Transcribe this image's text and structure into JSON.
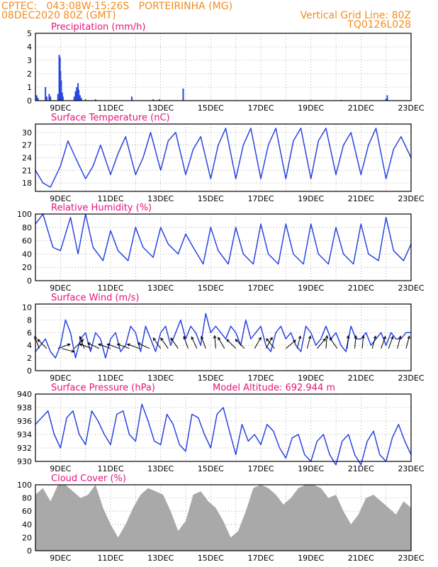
{
  "header": {
    "station_line": "CPTEC:   043:08W-15:26S   PORTEIRINHA (MG)",
    "date_line": "08DEC2020 80Z (GMT)",
    "grid_line": "Vertical Grid Line: 80Z",
    "model_code": "TQ0126L028"
  },
  "colors": {
    "header_text": "#f28c1e",
    "title_text": "#e8127c",
    "series_line": "#2b45e0",
    "cloud_fill": "#a9a9a9",
    "wind_arrow": "#000000"
  },
  "x_ticks": [
    "9DEC",
    "11DEC",
    "13DEC",
    "15DEC",
    "17DEC",
    "19DEC",
    "21DEC",
    "23DEC"
  ],
  "chart_data": [
    {
      "type": "bar",
      "title": "Precipitation (mm/h)",
      "ylim": [
        0,
        5
      ],
      "yticks": [
        "0",
        "1",
        "2",
        "3",
        "4",
        "5"
      ],
      "grid": true,
      "x_unit": "days since 8DEC 00Z",
      "bars": [
        [
          0.05,
          0.4
        ],
        [
          0.1,
          0.2
        ],
        [
          0.4,
          1.0
        ],
        [
          0.45,
          0.3
        ],
        [
          0.55,
          0.5
        ],
        [
          0.6,
          0.3
        ],
        [
          0.9,
          0.5
        ],
        [
          0.95,
          3.4
        ],
        [
          0.98,
          3.2
        ],
        [
          1.0,
          2.2
        ],
        [
          1.03,
          1.5
        ],
        [
          1.07,
          0.6
        ],
        [
          1.1,
          0.3
        ],
        [
          1.55,
          0.3
        ],
        [
          1.6,
          0.7
        ],
        [
          1.65,
          1.0
        ],
        [
          1.7,
          1.3
        ],
        [
          1.73,
          0.8
        ],
        [
          1.78,
          0.4
        ],
        [
          1.83,
          0.2
        ],
        [
          2.0,
          0.1
        ],
        [
          2.4,
          0.1
        ],
        [
          3.85,
          0.3
        ],
        [
          4.7,
          0.1
        ],
        [
          4.95,
          0.1
        ],
        [
          5.9,
          0.9
        ],
        [
          11.0,
          0.05
        ],
        [
          12.2,
          0.05
        ],
        [
          14.0,
          0.15
        ],
        [
          14.05,
          0.4
        ]
      ]
    },
    {
      "type": "line",
      "title": "Surface Temperature (nC)",
      "ylim": [
        16,
        32
      ],
      "yticks": [
        "18",
        "21",
        "24",
        "27",
        "30"
      ],
      "grid": true,
      "x_unit": "days since 8DEC 00Z",
      "series": [
        {
          "x": [
            0,
            0.3,
            0.6,
            1.0,
            1.3,
            1.6,
            2.0,
            2.3,
            2.6,
            3.0,
            3.3,
            3.6,
            4.0,
            4.3,
            4.6,
            5.0,
            5.3,
            5.6,
            6.0,
            6.3,
            6.6,
            7.0,
            7.3,
            7.6,
            8.0,
            8.3,
            8.6,
            9.0,
            9.3,
            9.6,
            10.0,
            10.3,
            10.6,
            11.0,
            11.3,
            11.6,
            12.0,
            12.3,
            12.6,
            13.0,
            13.3,
            13.6,
            14.0,
            14.3,
            14.6,
            15.0
          ],
          "y": [
            21,
            18,
            17,
            22,
            28,
            24,
            19,
            22,
            27,
            20,
            25,
            29,
            20,
            24,
            30,
            21,
            28,
            30,
            20,
            26,
            29,
            19,
            27,
            31,
            19,
            27,
            31,
            19,
            27,
            31,
            19,
            28,
            31,
            19,
            28,
            31,
            20,
            27,
            30,
            20,
            27,
            31,
            19,
            26,
            29,
            24
          ]
        }
      ]
    },
    {
      "type": "line",
      "title": "Relative Humidity (%)",
      "ylim": [
        0,
        100
      ],
      "yticks": [
        "0",
        "20",
        "40",
        "60",
        "80",
        "100"
      ],
      "grid": true,
      "x_unit": "days since 8DEC 00Z",
      "series": [
        {
          "x": [
            0,
            0.3,
            0.7,
            1.0,
            1.4,
            1.7,
            2.0,
            2.3,
            2.7,
            3.0,
            3.3,
            3.7,
            4.0,
            4.3,
            4.7,
            5.0,
            5.3,
            5.7,
            6.0,
            6.3,
            6.7,
            7.0,
            7.3,
            7.7,
            8.0,
            8.3,
            8.7,
            9.0,
            9.3,
            9.7,
            10.0,
            10.3,
            10.7,
            11.0,
            11.3,
            11.7,
            12.0,
            12.3,
            12.7,
            13.0,
            13.3,
            13.7,
            14.0,
            14.3,
            14.7,
            15.0
          ],
          "y": [
            85,
            100,
            50,
            45,
            95,
            40,
            100,
            50,
            30,
            75,
            45,
            30,
            80,
            50,
            35,
            80,
            55,
            40,
            70,
            50,
            25,
            80,
            45,
            25,
            80,
            40,
            25,
            85,
            40,
            25,
            85,
            40,
            25,
            85,
            40,
            25,
            80,
            40,
            25,
            85,
            40,
            30,
            95,
            45,
            30,
            55
          ]
        }
      ]
    },
    {
      "type": "line",
      "title": "Surface Wind (m/s)",
      "ylim": [
        0,
        10.5
      ],
      "yticks": [
        "0",
        "2",
        "4",
        "6",
        "8",
        "10"
      ],
      "grid": true,
      "x_unit": "days since 8DEC 00Z",
      "series": [
        {
          "x": [
            0,
            0.2,
            0.4,
            0.6,
            0.8,
            1.0,
            1.2,
            1.4,
            1.6,
            1.8,
            2.0,
            2.2,
            2.4,
            2.6,
            2.8,
            3.0,
            3.2,
            3.4,
            3.6,
            3.8,
            4.0,
            4.2,
            4.4,
            4.6,
            4.8,
            5.0,
            5.2,
            5.4,
            5.6,
            5.8,
            6.0,
            6.2,
            6.4,
            6.6,
            6.8,
            7.0,
            7.2,
            7.4,
            7.6,
            7.8,
            8.0,
            8.2,
            8.4,
            8.6,
            8.8,
            9.0,
            9.2,
            9.4,
            9.6,
            9.8,
            10.0,
            10.2,
            10.4,
            10.6,
            10.8,
            11.0,
            11.2,
            11.4,
            11.6,
            11.8,
            12.0,
            12.2,
            12.4,
            12.6,
            12.8,
            13.0,
            13.2,
            13.4,
            13.6,
            13.8,
            14.0,
            14.2,
            14.4,
            14.6,
            14.8,
            15.0
          ],
          "y": [
            3,
            4,
            5,
            3,
            2,
            4,
            8,
            6,
            2,
            5,
            6,
            3,
            6,
            5,
            2,
            5,
            6,
            3,
            4,
            7,
            6,
            3,
            7,
            5,
            3,
            6,
            7,
            4,
            6,
            8,
            5,
            7,
            6,
            4,
            9,
            6,
            7,
            6,
            5,
            7,
            6,
            4,
            8,
            5,
            6,
            7,
            4,
            3,
            6,
            7,
            5,
            6,
            4,
            3,
            7,
            6,
            4,
            5,
            7,
            5,
            6,
            4,
            3,
            7,
            5,
            5,
            6,
            4,
            5,
            6,
            4,
            6,
            5,
            5,
            6,
            6
          ]
        }
      ],
      "arrows": [
        [
          0.15,
          250
        ],
        [
          0.45,
          225
        ],
        [
          0.9,
          340
        ],
        [
          1.05,
          15
        ],
        [
          1.55,
          315
        ],
        [
          1.95,
          250
        ],
        [
          2.25,
          200
        ],
        [
          2.55,
          205
        ],
        [
          3.0,
          200
        ],
        [
          3.35,
          200
        ],
        [
          3.75,
          200
        ],
        [
          4.15,
          200
        ],
        [
          4.55,
          205
        ],
        [
          5.0,
          235
        ],
        [
          5.3,
          235
        ],
        [
          5.7,
          235
        ],
        [
          6.1,
          250
        ],
        [
          6.45,
          245
        ],
        [
          6.8,
          250
        ],
        [
          7.2,
          265
        ],
        [
          7.55,
          240
        ],
        [
          8.0,
          225
        ],
        [
          8.35,
          225
        ],
        [
          8.75,
          300
        ],
        [
          9.2,
          300
        ],
        [
          9.55,
          230
        ],
        [
          10.0,
          320
        ],
        [
          10.45,
          285
        ],
        [
          10.85,
          285
        ],
        [
          11.25,
          310
        ],
        [
          11.6,
          275
        ],
        [
          12.05,
          235
        ],
        [
          12.45,
          275
        ],
        [
          12.75,
          275
        ],
        [
          13.05,
          275
        ],
        [
          13.45,
          285
        ],
        [
          13.8,
          290
        ],
        [
          14.1,
          290
        ],
        [
          14.45,
          285
        ],
        [
          14.8,
          285
        ]
      ]
    },
    {
      "type": "line",
      "title": "Surface Pressure (hPa)",
      "annotation": "Model Altitude: 692.944 m",
      "ylim": [
        930,
        940
      ],
      "yticks": [
        "930",
        "932",
        "934",
        "936",
        "938",
        "940"
      ],
      "grid": true,
      "x_unit": "days since 8DEC 00Z",
      "series": [
        {
          "x": [
            0,
            0.25,
            0.5,
            0.75,
            1.0,
            1.25,
            1.5,
            1.75,
            2.0,
            2.25,
            2.5,
            2.75,
            3.0,
            3.25,
            3.5,
            3.75,
            4.0,
            4.25,
            4.5,
            4.75,
            5.0,
            5.25,
            5.5,
            5.75,
            6.0,
            6.25,
            6.5,
            6.75,
            7.0,
            7.25,
            7.5,
            7.75,
            8.0,
            8.25,
            8.5,
            8.75,
            9.0,
            9.25,
            9.5,
            9.75,
            10.0,
            10.25,
            10.5,
            10.75,
            11.0,
            11.25,
            11.5,
            11.75,
            12.0,
            12.25,
            12.5,
            12.75,
            13.0,
            13.25,
            13.5,
            13.75,
            14.0,
            14.25,
            14.5,
            14.75,
            15.0
          ],
          "y": [
            935.5,
            936.5,
            937.5,
            934,
            932,
            936.5,
            937.5,
            934,
            932.5,
            937.5,
            936,
            934,
            932.5,
            937,
            937.5,
            934,
            933,
            938.5,
            936,
            933,
            932.5,
            937,
            935.5,
            932.5,
            931.5,
            937,
            936.5,
            934,
            932,
            937,
            938,
            934.5,
            931,
            935.5,
            933,
            934,
            932.5,
            935.5,
            934.5,
            932,
            930.5,
            933.5,
            934,
            931,
            930,
            933,
            934,
            931,
            929.5,
            933,
            934,
            931,
            929.5,
            933,
            934.5,
            931,
            930,
            933.5,
            935.5,
            933,
            931
          ]
        }
      ]
    },
    {
      "type": "area",
      "title": "Cloud Cover (%)",
      "ylim": [
        0,
        100
      ],
      "yticks": [
        "0",
        "20",
        "40",
        "60",
        "80",
        "100"
      ],
      "grid": true,
      "x_unit": "days since 8DEC 00Z",
      "series": [
        {
          "x": [
            0,
            0.3,
            0.6,
            0.9,
            1.2,
            1.5,
            1.8,
            2.1,
            2.4,
            2.7,
            3.0,
            3.3,
            3.6,
            3.9,
            4.2,
            4.5,
            4.8,
            5.1,
            5.4,
            5.7,
            6.0,
            6.3,
            6.6,
            6.9,
            7.2,
            7.5,
            7.8,
            8.1,
            8.4,
            8.7,
            9.0,
            9.3,
            9.6,
            9.9,
            10.2,
            10.5,
            10.8,
            11.1,
            11.4,
            11.7,
            12.0,
            12.3,
            12.6,
            12.9,
            13.2,
            13.5,
            13.8,
            14.1,
            14.4,
            14.7,
            15.0
          ],
          "y": [
            85,
            95,
            75,
            100,
            100,
            90,
            80,
            85,
            100,
            65,
            40,
            20,
            40,
            65,
            85,
            95,
            90,
            85,
            60,
            30,
            45,
            85,
            90,
            75,
            65,
            45,
            20,
            30,
            60,
            95,
            100,
            95,
            85,
            70,
            80,
            95,
            100,
            100,
            95,
            80,
            85,
            60,
            40,
            55,
            80,
            85,
            75,
            65,
            55,
            75,
            65
          ]
        }
      ]
    }
  ]
}
